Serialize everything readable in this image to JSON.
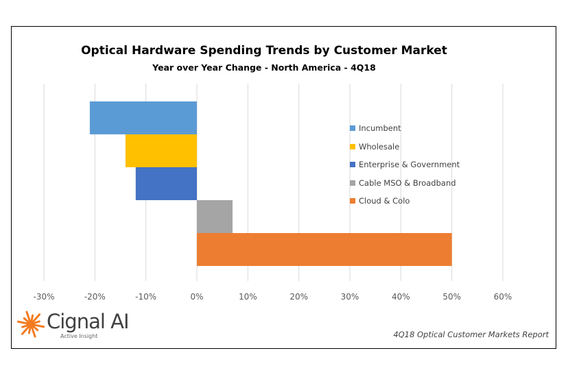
{
  "chart_data": {
    "type": "bar",
    "orientation": "horizontal",
    "title": "Optical Hardware  Spending Trends  by Customer  Market",
    "subtitle": "Year over Year Change - North America - 4Q18",
    "xlim": [
      -30,
      60
    ],
    "xticks": [
      -30,
      -20,
      -10,
      0,
      10,
      20,
      30,
      40,
      50,
      60
    ],
    "xtick_labels": [
      "-30%",
      "-20%",
      "-10%",
      "0%",
      "10%",
      "20%",
      "30%",
      "40%",
      "50%",
      "60%"
    ],
    "grid": "vertical",
    "legend_position": "right",
    "series": [
      {
        "name": "Incumbent",
        "value": -21,
        "color": "#5b9bd5"
      },
      {
        "name": "Wholesale",
        "value": -14,
        "color": "#ffc000"
      },
      {
        "name": "Enterprise & Government",
        "value": -12,
        "color": "#4472c4"
      },
      {
        "name": "Cable MSO & Broadband",
        "value": 7,
        "color": "#a5a5a5"
      },
      {
        "name": "Cloud & Colo",
        "value": 50,
        "color": "#ed7d31"
      }
    ]
  },
  "branding": {
    "logo_text": "Cignal AI",
    "logo_tagline": "Active Insight",
    "logo_color": "#f47b20"
  },
  "footer": {
    "report": "4Q18 Optical Customer Markets Report"
  }
}
